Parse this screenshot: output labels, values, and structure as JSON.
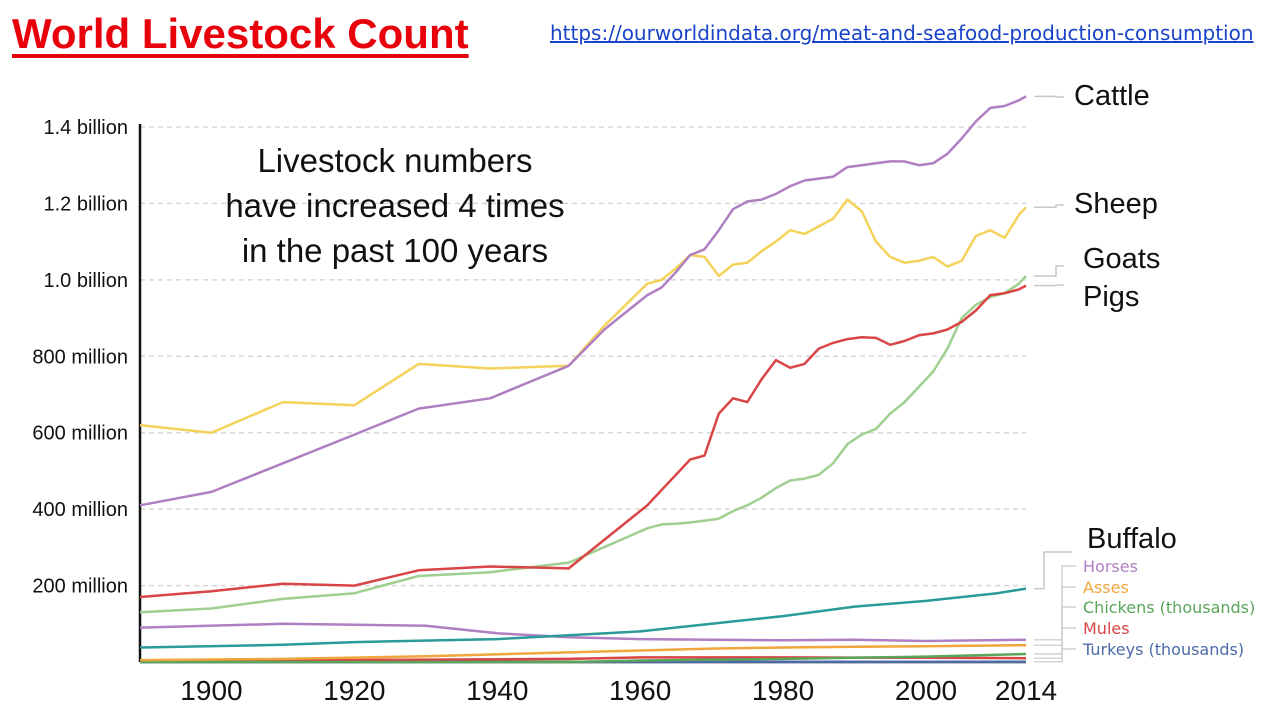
{
  "header": {
    "title": "World Livestock Count",
    "source_url": "https://ourworldindata.org/meat-and-seafood-production-consumption"
  },
  "annotation": {
    "line1": "Livestock numbers",
    "line2": "have increased 4 times",
    "line3": "in the past 100 years"
  },
  "chart_data": {
    "type": "line",
    "title": "World Livestock Count",
    "xlim": [
      1890,
      2014
    ],
    "ylim": [
      0,
      1400000000
    ],
    "x_ticks": [
      {
        "value": 1900,
        "label": "1900"
      },
      {
        "value": 1920,
        "label": "1920"
      },
      {
        "value": 1940,
        "label": "1940"
      },
      {
        "value": 1960,
        "label": "1960"
      },
      {
        "value": 1980,
        "label": "1980"
      },
      {
        "value": 2000,
        "label": "2000"
      },
      {
        "value": 2014,
        "label": "2014"
      }
    ],
    "y_ticks": [
      {
        "value": 200000000,
        "label": "200 million"
      },
      {
        "value": 400000000,
        "label": "400 million"
      },
      {
        "value": 600000000,
        "label": "600 million"
      },
      {
        "value": 800000000,
        "label": "800 million"
      },
      {
        "value": 1000000000,
        "label": "1.0 billion"
      },
      {
        "value": 1200000000,
        "label": "1.2 billion"
      },
      {
        "value": 1400000000,
        "label": "1.4 billion"
      }
    ],
    "series": [
      {
        "name": "Cattle",
        "color": "#b07fc3",
        "label_size": "large",
        "x": [
          1890,
          1900,
          1910,
          1920,
          1929,
          1939,
          1950,
          1955,
          1961,
          1963,
          1965,
          1967,
          1969,
          1971,
          1973,
          1975,
          1977,
          1979,
          1981,
          1983,
          1985,
          1987,
          1989,
          1991,
          1993,
          1995,
          1997,
          1999,
          2001,
          2003,
          2005,
          2007,
          2009,
          2011,
          2013,
          2014
        ],
        "y": [
          410000000,
          445000000,
          520000000,
          595000000,
          663000000,
          690000000,
          775000000,
          870000000,
          960000000,
          980000000,
          1020000000,
          1065000000,
          1080000000,
          1130000000,
          1185000000,
          1205000000,
          1210000000,
          1225000000,
          1245000000,
          1260000000,
          1265000000,
          1270000000,
          1295000000,
          1300000000,
          1305000000,
          1310000000,
          1310000000,
          1300000000,
          1305000000,
          1330000000,
          1370000000,
          1415000000,
          1450000000,
          1455000000,
          1470000000,
          1480000000
        ]
      },
      {
        "name": "Sheep",
        "color": "#f5d25a",
        "label_size": "large",
        "x": [
          1890,
          1900,
          1910,
          1920,
          1929,
          1939,
          1950,
          1955,
          1961,
          1963,
          1965,
          1967,
          1969,
          1971,
          1973,
          1975,
          1977,
          1979,
          1981,
          1983,
          1985,
          1987,
          1989,
          1991,
          1993,
          1995,
          1997,
          1999,
          2001,
          2003,
          2005,
          2007,
          2009,
          2011,
          2013,
          2014
        ],
        "y": [
          620000000,
          600000000,
          680000000,
          672000000,
          780000000,
          768000000,
          775000000,
          880000000,
          990000000,
          1000000000,
          1030000000,
          1065000000,
          1060000000,
          1010000000,
          1040000000,
          1045000000,
          1075000000,
          1100000000,
          1130000000,
          1120000000,
          1140000000,
          1160000000,
          1210000000,
          1180000000,
          1100000000,
          1060000000,
          1045000000,
          1050000000,
          1060000000,
          1035000000,
          1050000000,
          1115000000,
          1130000000,
          1110000000,
          1170000000,
          1190000000
        ]
      },
      {
        "name": "Goats",
        "color": "#9fd08f",
        "label_size": "large",
        "x": [
          1890,
          1900,
          1910,
          1920,
          1929,
          1939,
          1950,
          1961,
          1963,
          1965,
          1967,
          1969,
          1971,
          1973,
          1975,
          1977,
          1979,
          1981,
          1983,
          1985,
          1987,
          1989,
          1991,
          1993,
          1995,
          1997,
          1999,
          2001,
          2003,
          2005,
          2007,
          2009,
          2011,
          2013,
          2014
        ],
        "y": [
          130000000,
          140000000,
          165000000,
          180000000,
          225000000,
          235000000,
          260000000,
          350000000,
          360000000,
          362000000,
          365000000,
          370000000,
          375000000,
          395000000,
          410000000,
          430000000,
          455000000,
          475000000,
          480000000,
          490000000,
          520000000,
          570000000,
          595000000,
          610000000,
          650000000,
          680000000,
          720000000,
          760000000,
          820000000,
          900000000,
          935000000,
          955000000,
          965000000,
          990000000,
          1010000000
        ]
      },
      {
        "name": "Pigs",
        "color": "#d94545",
        "label_size": "large",
        "x": [
          1890,
          1900,
          1910,
          1920,
          1929,
          1939,
          1950,
          1961,
          1963,
          1965,
          1967,
          1969,
          1971,
          1973,
          1975,
          1977,
          1979,
          1981,
          1983,
          1985,
          1987,
          1989,
          1991,
          1993,
          1995,
          1997,
          1999,
          2001,
          2003,
          2005,
          2007,
          2009,
          2011,
          2013,
          2014
        ],
        "y": [
          170000000,
          185000000,
          205000000,
          200000000,
          240000000,
          250000000,
          245000000,
          410000000,
          450000000,
          490000000,
          530000000,
          540000000,
          650000000,
          690000000,
          680000000,
          740000000,
          790000000,
          770000000,
          780000000,
          820000000,
          835000000,
          845000000,
          850000000,
          848000000,
          830000000,
          840000000,
          855000000,
          860000000,
          870000000,
          890000000,
          920000000,
          960000000,
          965000000,
          975000000,
          985000000
        ]
      },
      {
        "name": "Buffalo",
        "color": "#2a9a9a",
        "label_size": "large",
        "x": [
          1890,
          1910,
          1920,
          1940,
          1960,
          1970,
          1980,
          1990,
          2000,
          2010,
          2014
        ],
        "y": [
          38000000,
          45000000,
          52000000,
          60000000,
          80000000,
          100000000,
          120000000,
          145000000,
          160000000,
          180000000,
          192000000
        ]
      },
      {
        "name": "Horses",
        "color": "#b07fc3",
        "label_size": "small",
        "x": [
          1890,
          1910,
          1930,
          1940,
          1950,
          1960,
          1970,
          1980,
          1990,
          2000,
          2014
        ],
        "y": [
          90000000,
          100000000,
          95000000,
          75000000,
          65000000,
          60000000,
          58000000,
          57000000,
          58000000,
          55000000,
          58000000
        ]
      },
      {
        "name": "Asses",
        "color": "#f0a63c",
        "label_size": "small",
        "x": [
          1890,
          1910,
          1930,
          1950,
          1960,
          1970,
          1980,
          1990,
          2000,
          2014
        ],
        "y": [
          5000000,
          8000000,
          15000000,
          25000000,
          30000000,
          35000000,
          38000000,
          40000000,
          41000000,
          44000000
        ]
      },
      {
        "name": "Chickens (thousands)",
        "color": "#5aa55a",
        "label_size": "small",
        "x": [
          1890,
          1950,
          1960,
          1980,
          2000,
          2014
        ],
        "y": [
          0,
          0,
          4000000,
          8000000,
          14000000,
          21000000
        ]
      },
      {
        "name": "Mules",
        "color": "#d94545",
        "label_size": "small",
        "x": [
          1890,
          1950,
          1960,
          1980,
          2000,
          2014
        ],
        "y": [
          2000000,
          8000000,
          12000000,
          12000000,
          11000000,
          10000000
        ]
      },
      {
        "name": "Turkeys (thousands)",
        "color": "#4a6aa8",
        "label_size": "small",
        "x": [
          1890,
          1960,
          2014
        ],
        "y": [
          0,
          300000,
          460000
        ]
      }
    ]
  }
}
